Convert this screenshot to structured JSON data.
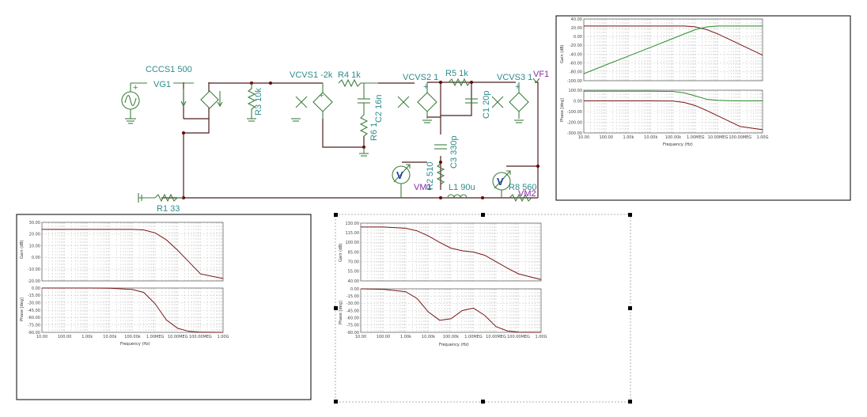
{
  "schematic": {
    "labels": {
      "cccs1": "CCCS1 500",
      "vg1": "VG1",
      "r3": "R3 10k",
      "vcvs1": "VCVS1 -2k",
      "r4": "R4 1k",
      "c2": "C2 16n",
      "r6": "R6 1",
      "vcvs2": "VCVS2 1",
      "r5": "R5 1k",
      "c1": "C1 20p",
      "c3": "C3 330p",
      "vcvs3": "VCVS3 1",
      "vf1": "VF1",
      "r2": "R2 510",
      "l1": "L1 90u",
      "vm1": "VM1",
      "r8": "R8 560",
      "vm2": "VM2",
      "r1": "R1 33",
      "meter_symbol": "V"
    },
    "colors": {
      "component": "#3f7f3f",
      "wire": "#4e1f1f",
      "label": "#2f8b8b",
      "meter_label": "#8b2aa6"
    }
  },
  "plots": [
    {
      "id": "plot-top-right",
      "gain_ylabel": "Gain (dB)",
      "phase_ylabel": "Phase [deg]",
      "xlabel": "Frequency (Hz)",
      "x_ticks": [
        "10.00",
        "100.00",
        "1.00k",
        "10.00k",
        "100.00k",
        "1.00MEG",
        "10.00MEG",
        "100.00MEG",
        "1.00G"
      ],
      "gain_ticks": [
        "40.00",
        "20.00",
        "0.00",
        "-20.00",
        "-40.00",
        "-60.00",
        "-80.00",
        "-100.00"
      ],
      "phase_ticks": [
        "100.00",
        "0.00",
        "-100.00",
        "-200.00",
        "-300.00"
      ]
    },
    {
      "id": "plot-bottom-left",
      "gain_ylabel": "Gain (dB)",
      "phase_ylabel": "Phase [deg]",
      "xlabel": "Frequency (Hz)",
      "x_ticks": [
        "10.00",
        "100.00",
        "1.00k",
        "10.00k",
        "100.00k",
        "1.00MEG",
        "10.00MEG",
        "100.00MEG",
        "1.00G"
      ],
      "gain_ticks": [
        "30.00",
        "20.00",
        "10.00",
        "0.00",
        "-10.00",
        "-20.00"
      ],
      "phase_ticks": [
        "0.00",
        "-15.00",
        "-30.00",
        "-45.00",
        "-60.00",
        "-75.00",
        "-90.00"
      ]
    },
    {
      "id": "plot-bottom-middle",
      "gain_ylabel": "Gain (dB)",
      "phase_ylabel": "Phase [deg]",
      "xlabel": "Frequency (Hz)",
      "x_ticks": [
        "10.00",
        "100.00",
        "1.00k",
        "10.00k",
        "100.00k",
        "1.00MEG",
        "10.00MEG",
        "100.00MEG",
        "1.00G"
      ],
      "gain_ticks": [
        "130.00",
        "115.00",
        "100.00",
        "85.00",
        "70.00",
        "55.00",
        "40.00"
      ],
      "phase_ticks": [
        "0.00",
        "-15.00",
        "-30.00",
        "-45.00",
        "-60.00",
        "-75.00",
        "-90.00"
      ]
    }
  ],
  "chart_data": [
    {
      "type": "line",
      "x_scale": "log",
      "x": [
        10,
        100,
        1000,
        10000,
        100000,
        316228,
        1000000,
        3162278,
        10000000,
        31622777,
        100000000,
        1000000000
      ],
      "xlim": [
        10,
        1000000000
      ],
      "xlabel": "Frequency (Hz)",
      "ylabel": "Gain (dB)",
      "ylim": [
        -100,
        40
      ],
      "series": [
        {
          "color": "#7a1515",
          "values": [
            24,
            24,
            24,
            24,
            24,
            24,
            22,
            16,
            6,
            -6,
            -18,
            -42
          ]
        },
        {
          "color": "#2c8c2c",
          "values": [
            -84,
            -64,
            -44,
            -24,
            -4,
            6,
            16,
            22,
            24,
            24,
            24,
            24
          ]
        }
      ]
    },
    {
      "type": "line",
      "x_scale": "log",
      "x": [
        10,
        100,
        1000,
        10000,
        100000,
        316228,
        1000000,
        3162278,
        10000000,
        31622777,
        100000000,
        1000000000
      ],
      "xlim": [
        10,
        1000000000
      ],
      "xlabel": "Frequency (Hz)",
      "ylabel": "Phase [deg]",
      "ylim": [
        -300,
        100
      ],
      "series": [
        {
          "color": "#7a1515",
          "values": [
            0,
            0,
            0,
            0,
            -2,
            -15,
            -45,
            -90,
            -140,
            -190,
            -240,
            -270
          ]
        },
        {
          "color": "#2c8c2c",
          "values": [
            90,
            90,
            90,
            90,
            88,
            75,
            45,
            15,
            5,
            2,
            0,
            0
          ]
        }
      ]
    },
    {
      "type": "line",
      "x_scale": "log",
      "x": [
        10,
        100,
        1000,
        10000,
        100000,
        316228,
        1000000,
        3162278,
        10000000,
        31622777,
        100000000,
        1000000000
      ],
      "xlim": [
        10,
        1000000000
      ],
      "xlabel": "Frequency (Hz)",
      "ylabel": "Gain (dB)",
      "ylim": [
        -20,
        30
      ],
      "series": [
        {
          "color": "#7a1515",
          "values": [
            24,
            24,
            24,
            24,
            24,
            23.5,
            21,
            15,
            6,
            -4,
            -14,
            -18
          ]
        }
      ]
    },
    {
      "type": "line",
      "x_scale": "log",
      "x": [
        10,
        100,
        1000,
        10000,
        100000,
        316228,
        1000000,
        3162278,
        10000000,
        31622777,
        100000000,
        1000000000
      ],
      "xlim": [
        10,
        1000000000
      ],
      "xlabel": "Frequency (Hz)",
      "ylabel": "Phase [deg]",
      "ylim": [
        -90,
        0
      ],
      "series": [
        {
          "color": "#7a1515",
          "values": [
            0,
            0,
            0,
            -0.5,
            -3,
            -9,
            -32,
            -65,
            -82,
            -88,
            -89.5,
            -90
          ]
        }
      ]
    },
    {
      "type": "line",
      "x_scale": "log",
      "x": [
        10,
        100,
        1000,
        3162,
        10000,
        31623,
        100000,
        316228,
        1000000,
        3162278,
        10000000,
        31622777,
        100000000,
        1000000000
      ],
      "xlim": [
        10,
        1000000000
      ],
      "xlabel": "Frequency (Hz)",
      "ylabel": "Gain (dB)",
      "ylim": [
        40,
        130
      ],
      "series": [
        {
          "color": "#7a1515",
          "values": [
            124,
            124,
            122,
            118,
            110,
            100,
            91,
            87,
            85,
            80,
            70,
            60,
            51,
            42
          ]
        }
      ]
    },
    {
      "type": "line",
      "x_scale": "log",
      "x": [
        10,
        100,
        1000,
        3162,
        10000,
        31623,
        100000,
        316228,
        1000000,
        3162278,
        10000000,
        31622777,
        100000000,
        1000000000
      ],
      "xlim": [
        10,
        1000000000
      ],
      "xlabel": "Frequency (Hz)",
      "ylabel": "Phase [deg]",
      "ylim": [
        -90,
        0
      ],
      "series": [
        {
          "color": "#7a1515",
          "values": [
            0,
            -1,
            -6,
            -20,
            -48,
            -65,
            -62,
            -45,
            -40,
            -55,
            -78,
            -87,
            -89.5,
            -90
          ]
        }
      ]
    }
  ]
}
